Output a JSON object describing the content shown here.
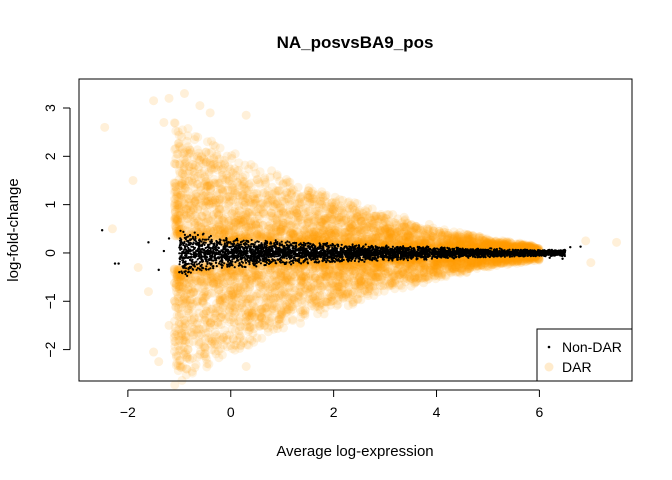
{
  "chart_data": {
    "type": "scatter",
    "title": "NA_posvsBA9_pos",
    "xlabel": "Average log-expression",
    "ylabel": "log-fold-change",
    "xlim": [
      -2.95,
      7.8
    ],
    "ylim": [
      -2.65,
      3.6
    ],
    "xticks": [
      -2,
      0,
      2,
      4,
      6
    ],
    "yticks": [
      -2,
      -1,
      0,
      1,
      2,
      3
    ],
    "legend_position": "bottom-right",
    "series": [
      {
        "name": "Non-DAR",
        "color": "#000000",
        "marker": "small-dot",
        "envelope": [
          [
            -1.0,
            0.55
          ],
          [
            -0.7,
            0.46
          ],
          [
            -0.3,
            0.36
          ],
          [
            0.0,
            0.33
          ],
          [
            1.0,
            0.26
          ],
          [
            2.0,
            0.21
          ],
          [
            3.0,
            0.17
          ],
          [
            4.0,
            0.13
          ],
          [
            5.0,
            0.1
          ],
          [
            6.0,
            0.07
          ]
        ],
        "points": [
          [
            -2.5,
            0.47
          ],
          [
            -2.25,
            -0.22
          ],
          [
            -2.18,
            -0.22
          ],
          [
            -1.6,
            0.22
          ],
          [
            -1.3,
            0.04
          ],
          [
            -1.4,
            -0.35
          ],
          [
            -1.2,
            0.3
          ],
          [
            6.2,
            -0.1
          ],
          [
            6.5,
            0.05
          ],
          [
            6.6,
            0.12
          ],
          [
            6.8,
            0.13
          ],
          [
            6.3,
            -0.05
          ],
          [
            6.45,
            -0.12
          ]
        ]
      },
      {
        "name": "DAR",
        "color": "#ff9900",
        "marker": "faint-circle",
        "envelope": [
          [
            -1.1,
            2.8
          ],
          [
            -0.5,
            2.4
          ],
          [
            0.0,
            2.1
          ],
          [
            1.0,
            1.6
          ],
          [
            2.0,
            1.2
          ],
          [
            3.0,
            0.85
          ],
          [
            4.0,
            0.55
          ],
          [
            5.0,
            0.3
          ],
          [
            6.0,
            0.15
          ]
        ],
        "points": [
          [
            -2.45,
            2.6
          ],
          [
            -1.9,
            1.5
          ],
          [
            -1.5,
            3.15
          ],
          [
            -1.3,
            2.7
          ],
          [
            -1.2,
            3.2
          ],
          [
            -0.9,
            3.3
          ],
          [
            -0.6,
            3.05
          ],
          [
            -0.4,
            2.9
          ],
          [
            0.3,
            2.85
          ],
          [
            -1.6,
            -0.8
          ],
          [
            -1.5,
            -2.05
          ],
          [
            -1.4,
            -2.25
          ],
          [
            -1.2,
            -1.5
          ],
          [
            -0.8,
            -2.2
          ],
          [
            -0.6,
            -2.1
          ],
          [
            0.3,
            -2.35
          ],
          [
            7.5,
            0.22
          ],
          [
            7.0,
            -0.2
          ],
          [
            6.9,
            0.25
          ],
          [
            -2.3,
            0.5
          ],
          [
            -1.8,
            -0.3
          ]
        ]
      }
    ]
  }
}
